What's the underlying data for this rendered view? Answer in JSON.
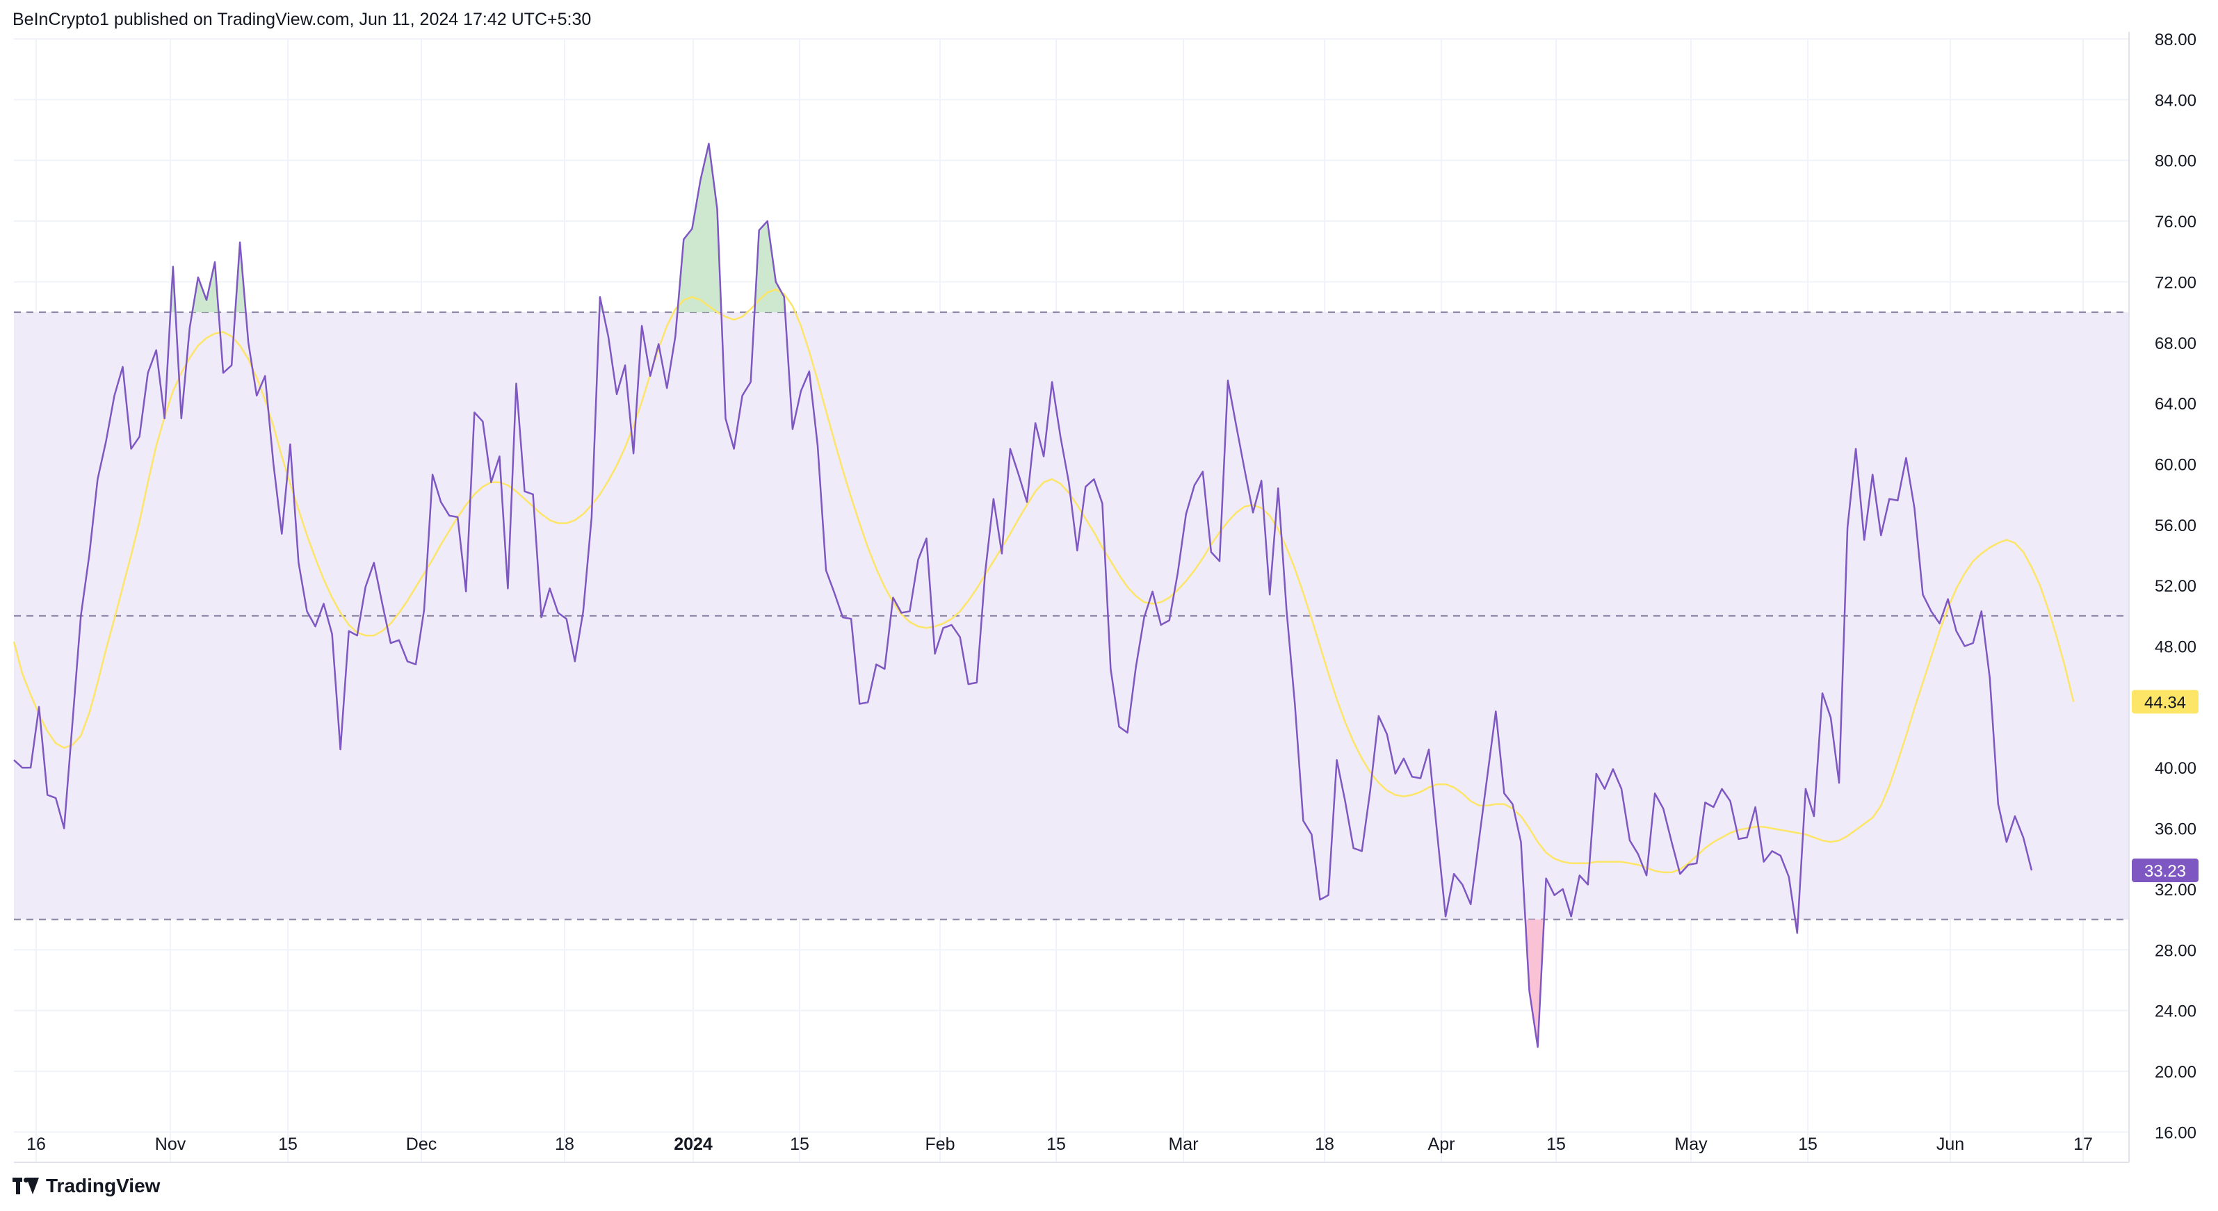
{
  "header": {
    "attribution": "BeInCrypto1 published on TradingView.com, Jun 11, 2024 17:42 UTC+5:30"
  },
  "footer": {
    "brand": "TradingView",
    "logo_icon": "tradingview-logo-icon"
  },
  "chart_data": {
    "type": "line",
    "title": "",
    "ylim": [
      14,
      88
    ],
    "yticks": [
      "88.00",
      "84.00",
      "80.00",
      "76.00",
      "72.00",
      "68.00",
      "64.00",
      "60.00",
      "56.00",
      "52.00",
      "48.00",
      "44.00",
      "40.00",
      "36.00",
      "32.00",
      "28.00",
      "24.00",
      "20.00",
      "16.00"
    ],
    "xticks": [
      {
        "label": "16",
        "bold": false
      },
      {
        "label": "Nov",
        "bold": false
      },
      {
        "label": "15",
        "bold": false
      },
      {
        "label": "Dec",
        "bold": false
      },
      {
        "label": "18",
        "bold": false
      },
      {
        "label": "2024",
        "bold": true
      },
      {
        "label": "15",
        "bold": false
      },
      {
        "label": "Feb",
        "bold": false
      },
      {
        "label": "15",
        "bold": false
      },
      {
        "label": "Mar",
        "bold": false
      },
      {
        "label": "18",
        "bold": false
      },
      {
        "label": "Apr",
        "bold": false
      },
      {
        "label": "15",
        "bold": false
      },
      {
        "label": "May",
        "bold": false
      },
      {
        "label": "15",
        "bold": false
      },
      {
        "label": "Jun",
        "bold": false
      },
      {
        "label": "17",
        "bold": false
      }
    ],
    "bands": {
      "upper": 70,
      "middle": 50,
      "lower": 30
    },
    "grid": true,
    "colors": {
      "rsi": "#7e57c2",
      "ma": "#fde568",
      "band_fill": "#efebf8",
      "overbought_fill": "#c8e6c9",
      "oversold_fill": "#f8bbd0",
      "guide": "#8a84a4"
    },
    "last_values": {
      "ma": "44.34",
      "rsi": "33.23"
    },
    "series": [
      {
        "key": "rsi",
        "values": [
          40.5,
          40,
          40,
          44,
          38.2,
          38,
          36,
          43,
          50,
          54,
          59,
          61.5,
          64.5,
          66.4,
          61,
          61.8,
          66,
          67.5,
          63,
          73,
          63,
          69,
          72.3,
          70.8,
          73.3,
          66,
          66.5,
          74.6,
          68,
          64.5,
          65.8,
          60,
          55.4,
          61.3,
          53.5,
          50.3,
          49.3,
          50.8,
          48.8,
          41.2,
          49,
          48.7,
          51.9,
          53.5,
          50.8,
          48.2,
          48.4,
          47,
          46.8,
          50.4,
          59.3,
          57.5,
          56.6,
          56.5,
          51.6,
          63.4,
          62.8,
          58.8,
          60.5,
          51.8,
          65.3,
          58.2,
          58,
          49.9,
          51.8,
          50.2,
          49.8,
          47,
          50.3,
          56.5,
          71,
          68.4,
          64.6,
          66.5,
          60.7,
          69.1,
          65.8,
          67.9,
          65,
          68.4,
          74.8,
          75.5,
          78.7,
          81.1,
          76.8,
          63,
          61,
          64.5,
          65.4,
          75.4,
          76,
          72,
          71,
          62.3,
          64.8,
          66.1,
          61.2,
          53,
          51.5,
          49.9,
          49.8,
          44.2,
          44.3,
          46.8,
          46.5,
          51.2,
          50.2,
          50.3,
          53.7,
          55.1,
          47.5,
          49.2,
          49.4,
          48.6,
          45.5,
          45.6,
          52.8,
          57.7,
          54.1,
          61,
          59.3,
          57.5,
          62.7,
          60.5,
          65.4,
          61.8,
          58.8,
          54.3,
          58.5,
          59,
          57.4,
          46.5,
          42.7,
          42.3,
          46.6,
          49.9,
          51.6,
          49.4,
          49.7,
          52.8,
          56.7,
          58.6,
          59.5,
          54.2,
          53.6,
          65.5,
          62.5,
          59.6,
          56.8,
          58.9,
          51.4,
          58.4,
          50.4,
          44.2,
          36.5,
          35.6,
          31.3,
          31.6,
          40.5,
          37.8,
          34.7,
          34.5,
          38.5,
          43.4,
          42.2,
          39.6,
          40.6,
          39.4,
          39.3,
          41.2,
          35.6,
          30.2,
          33,
          32.3,
          31,
          35.3,
          39.5,
          43.7,
          38.3,
          37.6,
          35.1,
          25.3,
          21.6,
          32.7,
          31.6,
          32,
          30.2,
          32.9,
          32.3,
          39.6,
          38.6,
          39.9,
          38.6,
          35.2,
          34.3,
          32.9,
          38.3,
          37.3,
          35.1,
          33,
          33.6,
          33.7,
          37.7,
          37.4,
          38.6,
          37.8,
          35.3,
          35.4,
          37.4,
          33.8,
          34.5,
          34.2,
          32.8,
          29.1,
          38.6,
          36.8,
          44.9,
          43.3,
          39,
          55.8,
          61,
          55,
          59.3,
          55.3,
          57.7,
          57.6,
          60.4,
          57.1,
          51.4,
          50.3,
          49.5,
          51.1,
          49,
          48,
          48.2,
          50.3,
          45.9,
          37.6,
          35.1,
          36.8,
          35.4,
          33.23
        ]
      },
      {
        "key": "ma",
        "values": [
          48.3,
          46.2,
          44.8,
          43.5,
          42.4,
          41.6,
          41.3,
          41.5,
          42.1,
          43.6,
          45.6,
          47.8,
          49.8,
          51.9,
          54,
          56.2,
          58.8,
          61.2,
          63.1,
          64.8,
          66,
          67,
          67.8,
          68.3,
          68.6,
          68.7,
          68.4,
          67.8,
          66.9,
          65.7,
          64.2,
          62.5,
          60.5,
          58.7,
          57,
          55.3,
          53.8,
          52.4,
          51.2,
          50.2,
          49.4,
          48.9,
          48.7,
          48.7,
          49,
          49.5,
          50.2,
          51,
          51.9,
          52.8,
          53.7,
          54.7,
          55.6,
          56.5,
          57.3,
          58,
          58.5,
          58.8,
          58.8,
          58.6,
          58.2,
          57.7,
          57.2,
          56.7,
          56.3,
          56.1,
          56.1,
          56.3,
          56.7,
          57.3,
          58,
          58.9,
          59.9,
          61.1,
          62.5,
          64.1,
          65.9,
          67.6,
          69.1,
          70.2,
          70.8,
          71,
          70.8,
          70.4,
          70,
          69.7,
          69.5,
          69.7,
          70.2,
          70.8,
          71.3,
          71.5,
          71.2,
          70.4,
          69.1,
          67.4,
          65.5,
          63.5,
          61.5,
          59.6,
          57.8,
          56.1,
          54.5,
          53.1,
          51.9,
          50.9,
          50.1,
          49.6,
          49.3,
          49.2,
          49.3,
          49.5,
          49.8,
          50.3,
          51,
          51.8,
          52.7,
          53.6,
          54.5,
          55.4,
          56.4,
          57.3,
          58.2,
          58.8,
          59,
          58.7,
          58.1,
          57.3,
          56.4,
          55.5,
          54.5,
          53.6,
          52.7,
          51.9,
          51.3,
          50.9,
          50.8,
          50.9,
          51.2,
          51.7,
          52.3,
          53,
          53.8,
          54.7,
          55.5,
          56.2,
          56.8,
          57.2,
          57.3,
          57.1,
          56.6,
          55.7,
          54.5,
          53.1,
          51.5,
          49.8,
          48,
          46.2,
          44.5,
          43,
          41.7,
          40.6,
          39.7,
          39,
          38.5,
          38.2,
          38.1,
          38.2,
          38.4,
          38.7,
          38.9,
          38.9,
          38.7,
          38.3,
          37.8,
          37.5,
          37.5,
          37.6,
          37.6,
          37.3,
          36.8,
          36,
          35.1,
          34.4,
          34,
          33.8,
          33.7,
          33.7,
          33.7,
          33.8,
          33.8,
          33.8,
          33.8,
          33.7,
          33.6,
          33.4,
          33.2,
          33.1,
          33.1,
          33.3,
          33.7,
          34.2,
          34.7,
          35.1,
          35.4,
          35.7,
          35.9,
          36,
          36.1,
          36.1,
          36,
          35.9,
          35.8,
          35.7,
          35.6,
          35.4,
          35.2,
          35.1,
          35.2,
          35.5,
          35.9,
          36.3,
          36.7,
          37.5,
          38.8,
          40.4,
          42.1,
          43.9,
          45.6,
          47.3,
          49,
          50.5,
          51.8,
          52.8,
          53.6,
          54.1,
          54.5,
          54.8,
          55,
          54.8,
          54.2,
          53.2,
          52,
          50.4,
          48.6,
          46.6,
          44.34
        ]
      }
    ]
  }
}
